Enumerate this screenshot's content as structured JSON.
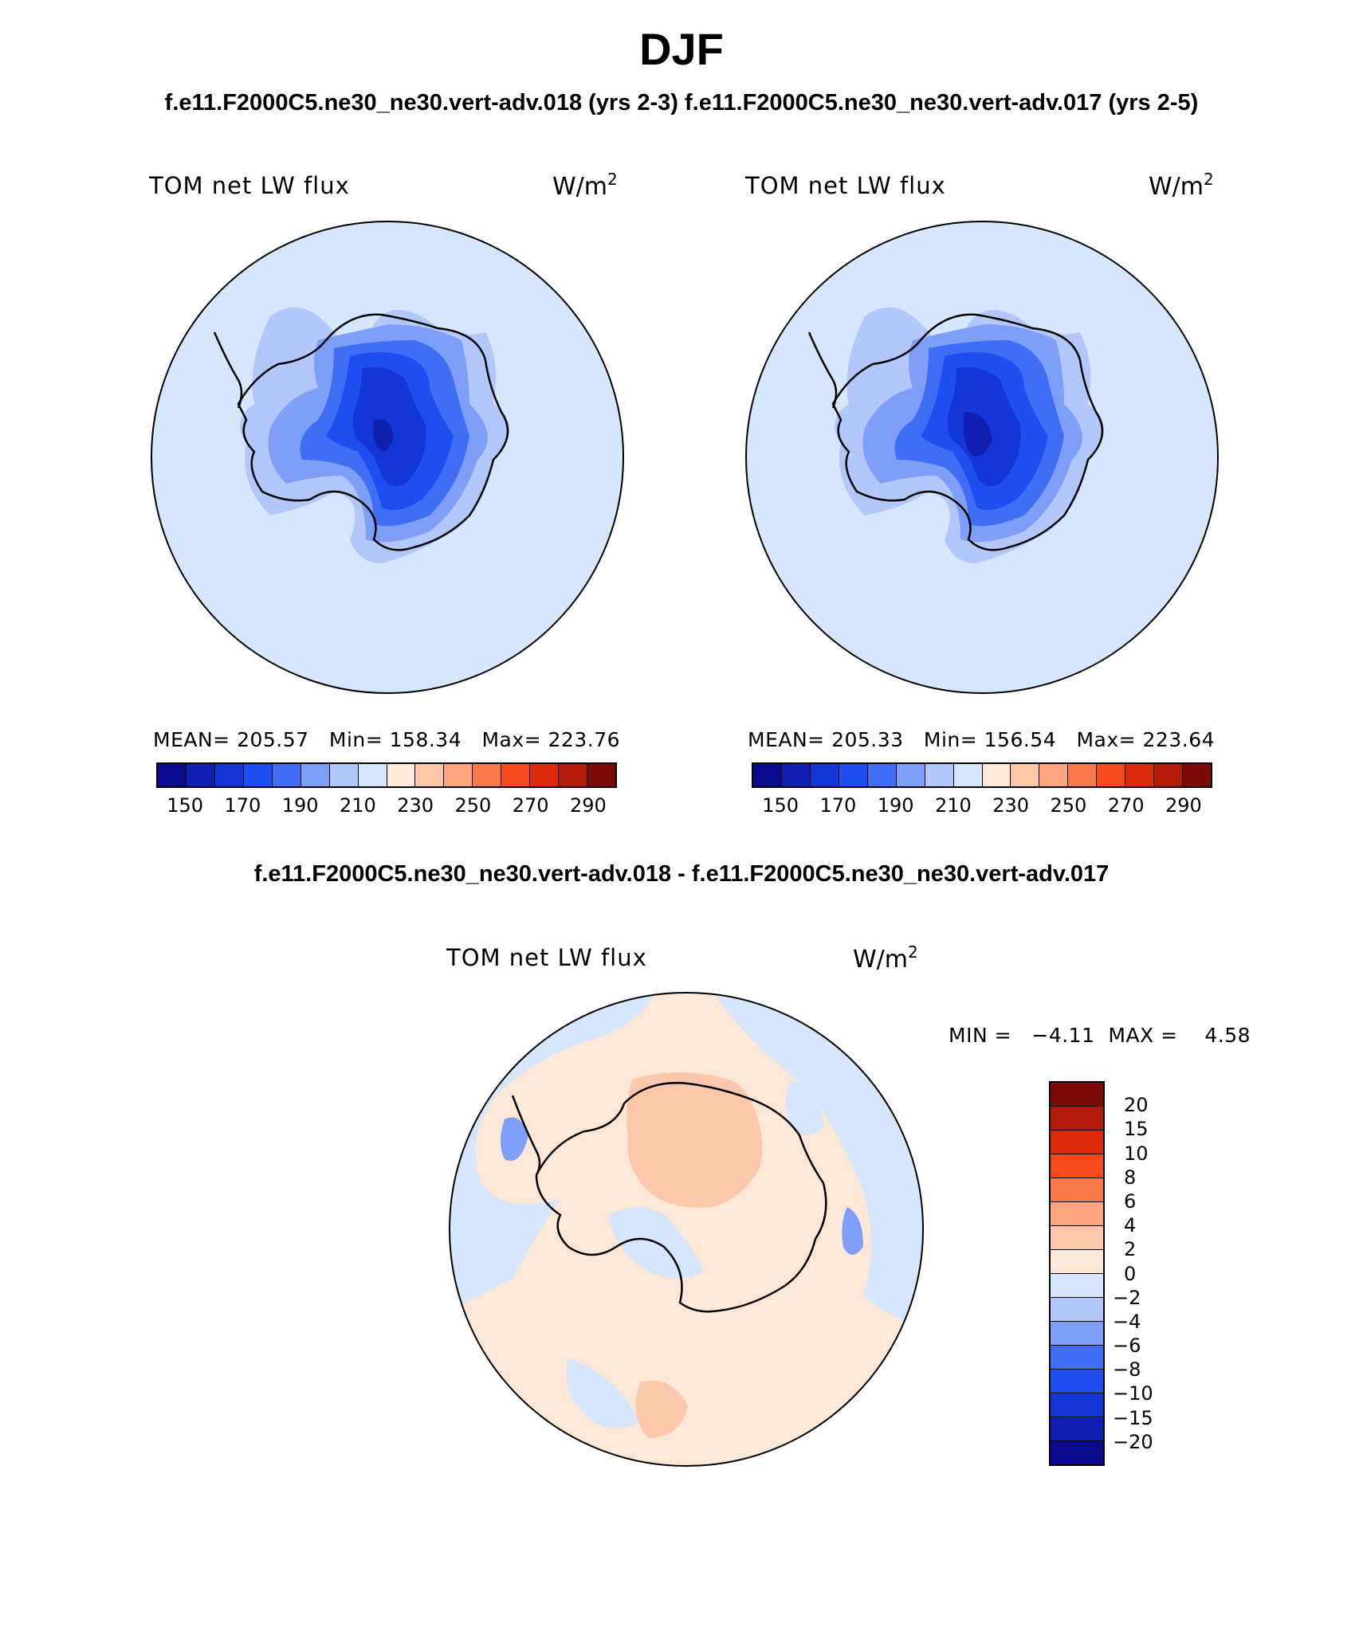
{
  "title": "DJF",
  "subtitle_top": "f.e11.F2000C5.ne30_ne30.vert-adv.018 (yrs 2-3)  f.e11.F2000C5.ne30_ne30.vert-adv.017 (yrs 2-5)",
  "subtitle_diff": "f.e11.F2000C5.ne30_ne30.vert-adv.018 - f.e11.F2000C5.ne30_ne30.vert-adv.017",
  "colors": {
    "abs_scale": [
      "#0a0a8c",
      "#0f1fb0",
      "#1436d6",
      "#1f4ef0",
      "#3f6ef5",
      "#7f9ef7",
      "#b3c7fa",
      "#d6e6fc",
      "#fde7d6",
      "#fcc8ab",
      "#fca57f",
      "#fb7a4c",
      "#f74a1c",
      "#dd2a0b",
      "#b11a08",
      "#7c0a06"
    ],
    "diff_scale": [
      "#7c0a06",
      "#b11a08",
      "#dd2a0b",
      "#f74a1c",
      "#fb7a4c",
      "#fca57f",
      "#fcc8ab",
      "#fde7d6",
      "#d6e6fc",
      "#b3c7fa",
      "#7f9ef7",
      "#3f6ef5",
      "#1f4ef0",
      "#1436d6",
      "#0f1fb0",
      "#0a0a8c"
    ]
  },
  "panels": [
    {
      "label": "TOM  net  LW  flux",
      "units_base": "W/m",
      "units_exp": "2",
      "stats": "MEAN= 205.57   Min= 158.34   Max= 223.76",
      "ticks": [
        "150",
        "170",
        "190",
        "210",
        "230",
        "250",
        "270",
        "290"
      ]
    },
    {
      "label": "TOM  net  LW  flux",
      "units_base": "W/m",
      "units_exp": "2",
      "stats": "MEAN= 205.33   Min= 156.54   Max= 223.64",
      "ticks": [
        "150",
        "170",
        "190",
        "210",
        "230",
        "250",
        "270",
        "290"
      ]
    }
  ],
  "diff_panel": {
    "label": "TOM  net  LW  flux",
    "units_base": "W/m",
    "units_exp": "2",
    "stats": "MIN =   −4.11  MAX =    4.58",
    "ticks": [
      "20",
      "15",
      "10",
      "8",
      "6",
      "4",
      "2",
      "0",
      "−2",
      "−4",
      "−6",
      "−8",
      "−10",
      "−15",
      "−20"
    ]
  }
}
